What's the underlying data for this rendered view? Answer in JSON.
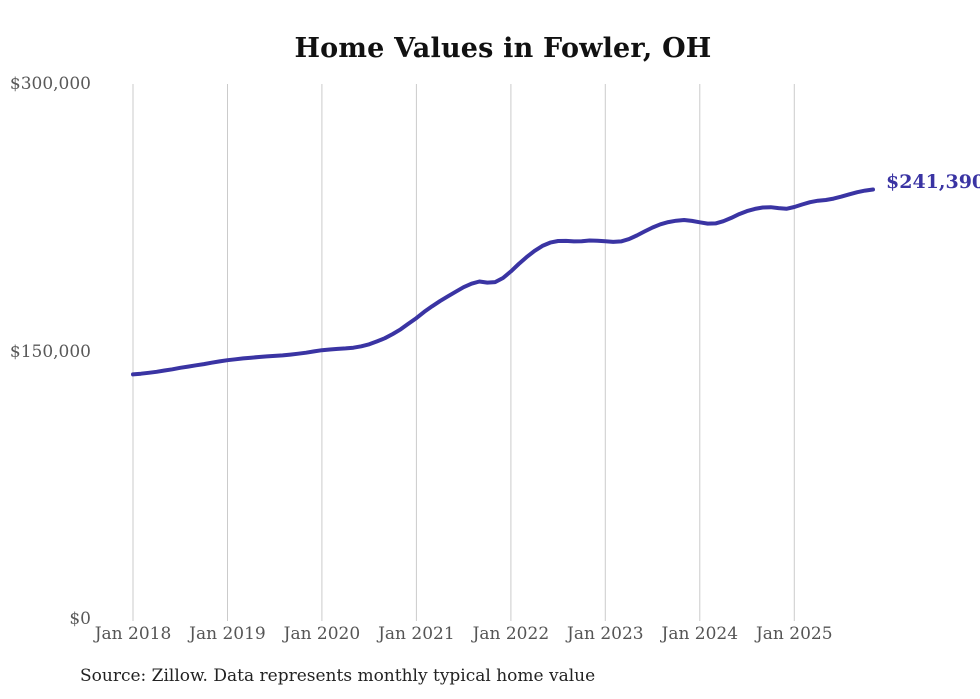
{
  "header": {
    "title": "Home Values in Fowler, OH"
  },
  "annotation": {
    "latest_value_label": "$241,390"
  },
  "footer": {
    "source_note": "Source: Zillow. Data represents monthly typical home value"
  },
  "colors": {
    "line": "#3a34a3",
    "grid": "#cbcbcb",
    "tick_text": "#595959",
    "title_text": "#111111",
    "source_text": "#222222",
    "background": "#ffffff"
  },
  "chart_data": {
    "type": "line",
    "title": "Home Values in Fowler, OH",
    "xlabel": "",
    "ylabel": "",
    "frequency": "monthly",
    "x_start": "Jan 2018",
    "x_end": "Nov 2025",
    "x_tick_labels": [
      "Jan 2018",
      "Jan 2019",
      "Jan 2020",
      "Jan 2021",
      "Jan 2022",
      "Jan 2023",
      "Jan 2024",
      "Jan 2025"
    ],
    "months_per_x_tick": 12,
    "y_ticks": [
      {
        "label": "$0",
        "value": 0
      },
      {
        "label": "$150,000",
        "value": 150000
      },
      {
        "label": "$300,000",
        "value": 300000
      }
    ],
    "ylim": [
      0,
      300000
    ],
    "grid": "vertical-only",
    "legend": "none",
    "last_value": 241390,
    "last_value_label": "$241,390",
    "series": [
      {
        "name": "Typical home value (USD)",
        "values": [
          137700,
          138100,
          138600,
          139200,
          139900,
          140600,
          141400,
          142100,
          142800,
          143500,
          144300,
          145000,
          145700,
          146200,
          146700,
          147100,
          147500,
          147800,
          148100,
          148400,
          148800,
          149300,
          149900,
          150600,
          151300,
          151700,
          152000,
          152300,
          152700,
          153500,
          154600,
          156200,
          158000,
          160400,
          163000,
          166200,
          169300,
          172800,
          175900,
          178800,
          181500,
          184100,
          186600,
          188600,
          189800,
          189200,
          189500,
          191800,
          195500,
          199600,
          203500,
          207000,
          209800,
          211600,
          212500,
          212600,
          212300,
          212400,
          212800,
          212700,
          212400,
          212000,
          212300,
          213600,
          215600,
          217900,
          220100,
          221900,
          223100,
          223900,
          224300,
          223800,
          223000,
          222300,
          222400,
          223600,
          225500,
          227600,
          229300,
          230500,
          231300,
          231500,
          231000,
          230600,
          231600,
          233000,
          234300,
          235100,
          235500,
          236300,
          237400,
          238700,
          239900,
          240800,
          241390
        ]
      }
    ]
  }
}
